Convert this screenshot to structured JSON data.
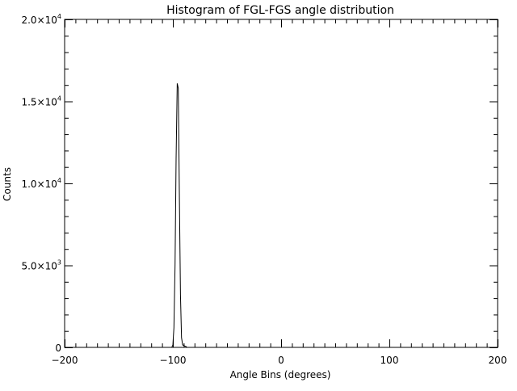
{
  "chart_data": {
    "type": "line",
    "title": "Histogram of FGL-FGS angle distribution",
    "xlabel": "Angle Bins (degrees)",
    "ylabel": "Counts",
    "xlim": [
      -200,
      200
    ],
    "ylim": [
      0,
      20000
    ],
    "xticks": [
      -200,
      -100,
      0,
      100,
      200
    ],
    "xtick_labels": [
      "−200",
      "−100",
      "0",
      "100",
      "200"
    ],
    "yticks": [
      0,
      5000,
      10000,
      15000,
      20000
    ],
    "ytick_labels": [
      {
        "mant": "0",
        "exp": ""
      },
      {
        "mant": "5.0×10",
        "exp": "3"
      },
      {
        "mant": "1.0×10",
        "exp": "4"
      },
      {
        "mant": "1.5×10",
        "exp": "4"
      },
      {
        "mant": "2.0×10",
        "exp": "4"
      }
    ],
    "grid": false,
    "series": [
      {
        "name": "counts",
        "x": [
          -200,
          -101,
          -100,
          -99,
          -98,
          -97,
          -96,
          -95,
          -94,
          -93,
          -92,
          -91,
          -90,
          -89,
          -88,
          -87,
          200
        ],
        "y": [
          0,
          0,
          150,
          1200,
          5000,
          11500,
          16100,
          15800,
          9500,
          3200,
          600,
          150,
          120,
          80,
          60,
          0,
          0
        ]
      }
    ]
  }
}
